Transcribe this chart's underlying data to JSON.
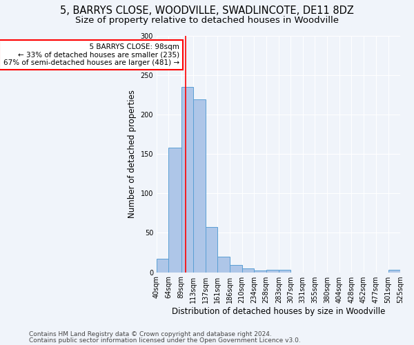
{
  "title1": "5, BARRYS CLOSE, WOODVILLE, SWADLINCOTE, DE11 8DZ",
  "title2": "Size of property relative to detached houses in Woodville",
  "xlabel": "Distribution of detached houses by size in Woodville",
  "ylabel": "Number of detached properties",
  "bin_edges": [
    40,
    64,
    89,
    113,
    137,
    161,
    186,
    210,
    234,
    258,
    283,
    307,
    331,
    355,
    380,
    404,
    428,
    452,
    477,
    501,
    525
  ],
  "bar_heights": [
    17,
    158,
    235,
    219,
    57,
    20,
    9,
    5,
    2,
    3,
    3,
    0,
    0,
    0,
    0,
    0,
    0,
    0,
    0,
    3
  ],
  "bar_color": "#aec6e8",
  "bar_edge_color": "#5a9fd4",
  "vertical_line_x": 98,
  "vertical_line_color": "red",
  "annotation_title": "5 BARRYS CLOSE: 98sqm",
  "annotation_line1": "← 33% of detached houses are smaller (235)",
  "annotation_line2": "67% of semi-detached houses are larger (481) →",
  "annotation_box_color": "white",
  "annotation_box_edge_color": "red",
  "ylim": [
    0,
    300
  ],
  "yticks": [
    0,
    50,
    100,
    150,
    200,
    250,
    300
  ],
  "footer1": "Contains HM Land Registry data © Crown copyright and database right 2024.",
  "footer2": "Contains public sector information licensed under the Open Government Licence v3.0.",
  "background_color": "#f0f4fa",
  "grid_color": "#ffffff",
  "title1_fontsize": 10.5,
  "title2_fontsize": 9.5,
  "axis_label_fontsize": 8.5,
  "tick_fontsize": 7,
  "footer_fontsize": 6.5,
  "annotation_fontsize": 7.5
}
